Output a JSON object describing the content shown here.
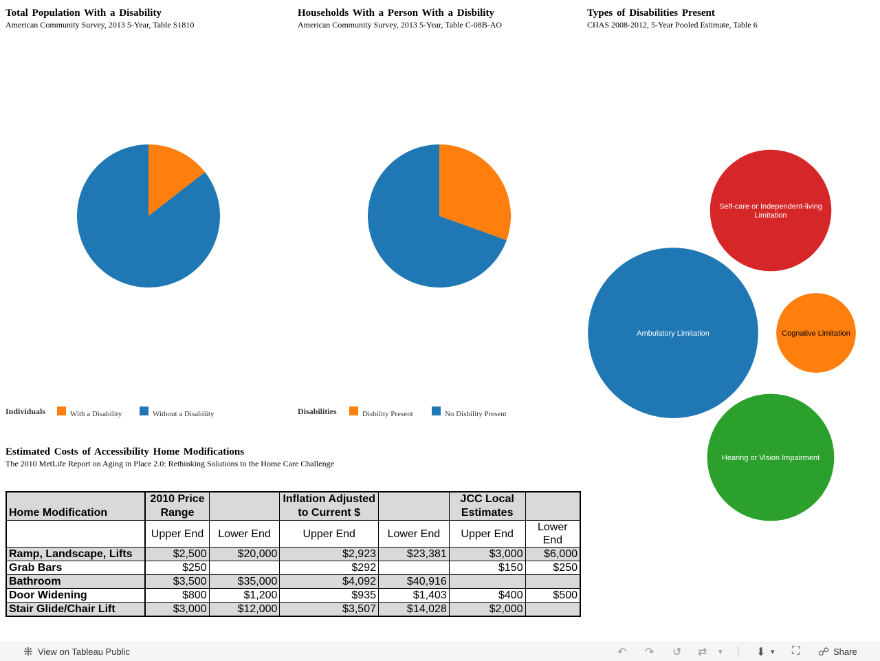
{
  "charts": [
    {
      "title": "Total Population With a Disability",
      "subtitle": "American Community Survey, 2013 5-Year, Table S1810",
      "legend_title": "Individuals",
      "legend": [
        {
          "label": "With a Disability",
          "color": "#ff7f0e"
        },
        {
          "label": "Without a Disability",
          "color": "#1f77b4"
        }
      ]
    },
    {
      "title": "Households With a Person With a Disbility",
      "subtitle": "American Community Survey, 2013 5-Year, Table C-08B-AO",
      "legend_title": "Disabilities",
      "legend": [
        {
          "label": "Disbility Present",
          "color": "#ff7f0e"
        },
        {
          "label": "No Disbility Present",
          "color": "#1f77b4"
        }
      ]
    },
    {
      "title": "Types of Disabilities Present",
      "subtitle": "CHAS 2008-2012, 5-Year Pooled Estimate, Table 6"
    }
  ],
  "chart_data": [
    {
      "type": "pie",
      "title": "Total Population With a Disability",
      "labels": [
        "With a Disability",
        "Without a Disability"
      ],
      "values": [
        14.5,
        85.5
      ],
      "colors": [
        "#ff7f0e",
        "#1f77b4"
      ]
    },
    {
      "type": "pie",
      "title": "Households With a Person With a Disbility",
      "labels": [
        "Disbility Present",
        "No Disbility Present"
      ],
      "values": [
        30.5,
        69.5
      ],
      "colors": [
        "#ff7f0e",
        "#1f77b4"
      ]
    },
    {
      "type": "bubble",
      "title": "Types of Disabilities Present",
      "labels": [
        "Self-care or Independent-living Limitation",
        "Ambulatory Limitation",
        "Cognative Limitation",
        "Hearing or Vision Impairment"
      ],
      "values": [
        43.5,
        61.0,
        28.5,
        45.5
      ],
      "colors": [
        "#d62728",
        "#1f77b4",
        "#ff7f0e",
        "#2ca02c"
      ],
      "label_colors": [
        "#ffffff",
        "#ffffff",
        "#000000",
        "#ffffff"
      ]
    }
  ],
  "table": {
    "title": "Estimated Costs of Accessibility Home Modifications",
    "subtitle": "The 2010 MetLife Report on Aging in Place 2.0: Rethinking Solutions to the Home Care Challenge",
    "header": [
      "Home Modification",
      "2010 Price Range",
      "",
      "Inflation Adjusted to Current $",
      "",
      "JCC Local Estimates",
      ""
    ],
    "subheader": [
      "",
      "Upper End",
      "Lower End",
      "Upper End",
      "Lower End",
      "Upper End",
      "Lower End"
    ],
    "rows": [
      [
        "Ramp, Landscape, Lifts",
        "$2,500",
        "$20,000",
        "$2,923",
        "$23,381",
        "$3,000",
        "$6,000"
      ],
      [
        "Grab Bars",
        "$250",
        "",
        "$292",
        "",
        "$150",
        "$250"
      ],
      [
        "Bathroom",
        "$3,500",
        "$35,000",
        "$4,092",
        "$40,916",
        "",
        ""
      ],
      [
        "Door Widening",
        "$800",
        "$1,200",
        "$935",
        "$1,403",
        "$400",
        "$500"
      ],
      [
        "Stair Glide/Chair Lift",
        "$3,000",
        "$12,000",
        "$3,507",
        "$14,028",
        "$2,000",
        ""
      ]
    ]
  },
  "footer": {
    "view_label": "View on Tableau Public",
    "share_label": "Share",
    "icons": [
      "undo-icon",
      "redo-icon",
      "revert-icon",
      "refresh-icon",
      "download-icon",
      "fullscreen-icon",
      "share-icon"
    ]
  }
}
